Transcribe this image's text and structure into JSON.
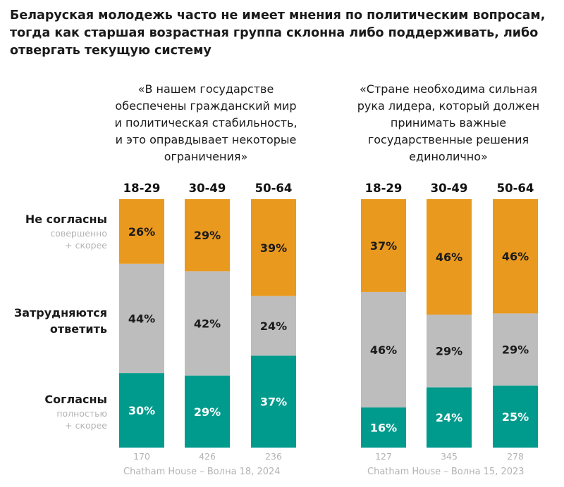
{
  "title_lines": [
    "Беларуская молодежь часто не имеет мнения по политическим вопросам,",
    "тогда как старшая возрастная группа склонна либо поддерживать, либо",
    "отвергать текущую систему"
  ],
  "row_labels": {
    "disagree": {
      "main": "Не согласны",
      "sub1": "совершенно",
      "sub2": "+ скорее"
    },
    "hard": {
      "main1": "Затрудняются",
      "main2": "ответить"
    },
    "agree": {
      "main": "Согласны",
      "sub1": "полностью",
      "sub2": "+ скорее"
    }
  },
  "colors": {
    "disagree": "#E9991E",
    "hard": "#BDBDBD",
    "agree": "#009B8D"
  },
  "chart_data": [
    {
      "type": "bar",
      "stacked": true,
      "normalized": true,
      "title_lines": [
        "«В нашем государстве",
        "обеспечены гражданский мир",
        "и политическая стабильность,",
        "и это оправдывает некоторые",
        "ограничения»"
      ],
      "categories": [
        "18-29",
        "30-49",
        "50-64"
      ],
      "series": [
        {
          "key": "agree",
          "labels": [
            "30%",
            "29%",
            "37%"
          ],
          "values": [
            30,
            29,
            37
          ]
        },
        {
          "key": "hard",
          "labels": [
            "44%",
            "42%",
            "24%"
          ],
          "values": [
            44,
            42,
            24
          ]
        },
        {
          "key": "disagree",
          "labels": [
            "26%",
            "29%",
            "39%"
          ],
          "values": [
            26,
            29,
            39
          ]
        }
      ],
      "sample_sizes": [
        "170",
        "426",
        "236"
      ],
      "source": "Chatham House – Волна 18, 2024"
    },
    {
      "type": "bar",
      "stacked": true,
      "normalized": true,
      "title_lines": [
        "«Стране необходима сильная",
        "рука лидера, который должен",
        "принимать важные",
        "государственные решения",
        "единолично»"
      ],
      "categories": [
        "18-29",
        "30-49",
        "50-64"
      ],
      "series": [
        {
          "key": "agree",
          "labels": [
            "16%",
            "24%",
            "25%"
          ],
          "values": [
            16,
            24,
            25
          ]
        },
        {
          "key": "hard",
          "labels": [
            "46%",
            "29%",
            "29%"
          ],
          "values": [
            46,
            29,
            29
          ]
        },
        {
          "key": "disagree",
          "labels": [
            "37%",
            "46%",
            "46%"
          ],
          "values": [
            37,
            46,
            46
          ]
        }
      ],
      "sample_sizes": [
        "127",
        "345",
        "278"
      ],
      "source": "Chatham House – Волна 15, 2023"
    }
  ]
}
